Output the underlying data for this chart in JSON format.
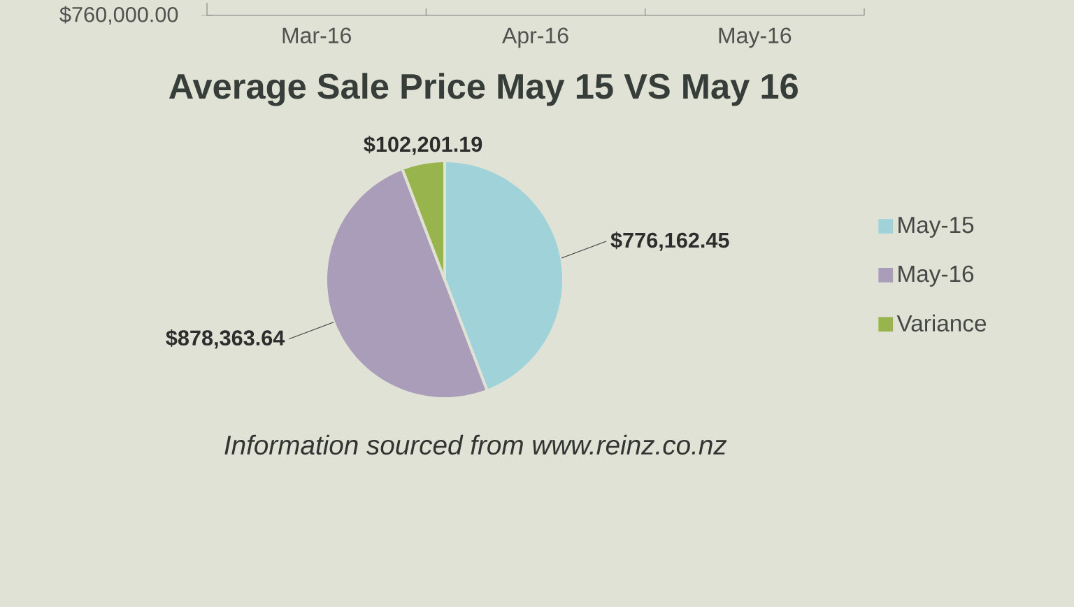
{
  "chart_data": [
    {
      "type": "other",
      "categories": [
        "Mar-16",
        "Apr-16",
        "May-16"
      ],
      "annotations": [
        "$760,000.00"
      ]
    },
    {
      "type": "pie",
      "title": "Average Sale Price May 15 VS May 16",
      "categories": [
        "May-15",
        "May-16",
        "Variance"
      ],
      "values": [
        776162.45,
        878363.64,
        102201.19
      ],
      "value_labels": [
        "$776,162.45",
        "$878,363.64",
        "$102,201.19"
      ],
      "colors": [
        "#9fd3d9",
        "#aa9dba",
        "#97b54c"
      ],
      "legend": "right",
      "annotations": [
        "Information sourced from www.reinz.co.nz"
      ]
    }
  ]
}
